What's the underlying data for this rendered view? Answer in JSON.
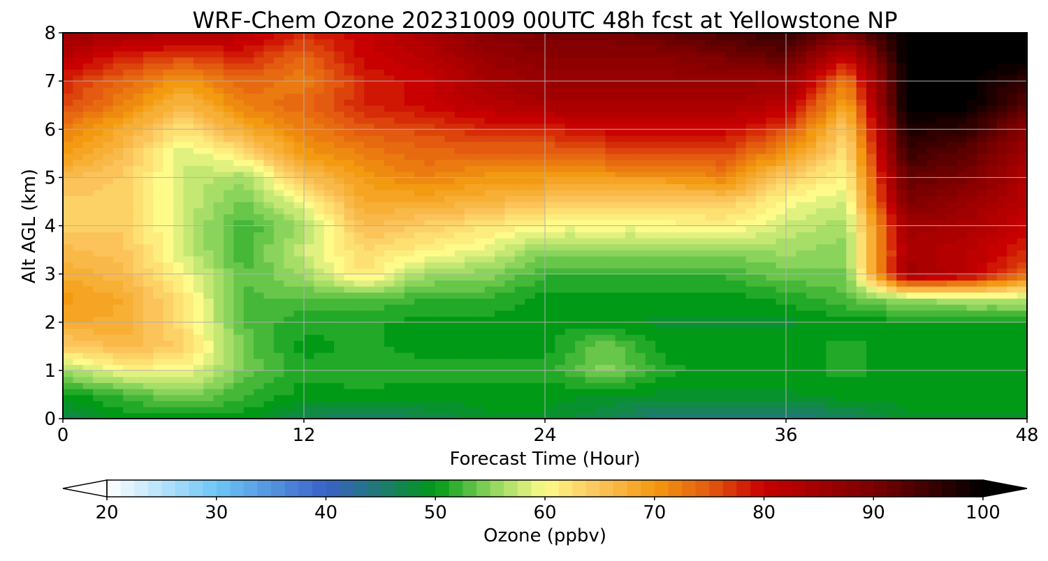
{
  "chart_data": {
    "type": "heatmap",
    "title": "WRF-Chem Ozone  20231009 00UTC 48h fcst at Yellowstone NP",
    "xlabel": "Forecast Time (Hour)",
    "ylabel": "Alt AGL (km)",
    "xlim": [
      0,
      48
    ],
    "ylim": [
      0,
      8
    ],
    "x_ticks": [
      0,
      12,
      24,
      36,
      48
    ],
    "y_ticks": [
      0,
      1,
      2,
      3,
      4,
      5,
      6,
      7,
      8
    ],
    "grid": true,
    "x": [
      0,
      3,
      6,
      9,
      12,
      15,
      18,
      21,
      24,
      27,
      30,
      33,
      36,
      39,
      42,
      45,
      48
    ],
    "y": [
      0,
      0.5,
      1,
      1.5,
      2,
      2.5,
      3,
      3.5,
      4,
      4.5,
      5,
      5.5,
      6,
      6.5,
      7,
      7.5,
      8
    ],
    "z": [
      [
        47,
        50,
        50,
        50,
        47,
        45,
        47,
        49,
        49,
        47,
        44,
        44,
        44,
        46,
        49,
        49,
        49
      ],
      [
        50,
        52,
        55,
        52,
        50,
        50,
        50,
        50,
        50,
        49,
        49,
        49,
        49,
        50,
        50,
        50,
        50
      ],
      [
        56,
        60,
        60,
        54,
        51,
        52,
        51,
        51,
        51,
        55,
        51,
        50,
        50,
        51,
        50,
        50,
        50
      ],
      [
        64,
        66,
        64,
        54,
        50,
        51,
        50,
        50,
        50,
        54,
        50,
        50,
        50,
        51,
        50,
        50,
        50
      ],
      [
        68,
        68,
        62,
        53,
        51,
        51,
        50,
        50,
        50,
        50,
        49,
        49,
        49,
        50,
        50,
        50,
        50
      ],
      [
        70,
        68,
        62,
        53,
        53,
        53,
        52,
        52,
        50,
        50,
        50,
        50,
        51,
        53,
        56,
        57,
        57
      ],
      [
        68,
        66,
        60,
        53,
        56,
        62,
        56,
        55,
        52,
        52,
        52,
        52,
        54,
        54,
        85,
        82,
        74
      ],
      [
        66,
        65,
        58,
        52,
        58,
        63,
        61,
        59,
        55,
        55,
        55,
        55,
        56,
        55,
        84,
        82,
        78
      ],
      [
        64,
        64,
        58,
        52,
        56,
        66,
        64,
        62,
        60,
        60,
        60,
        61,
        58,
        56,
        85,
        84,
        80
      ],
      [
        64,
        64,
        58,
        54,
        60,
        68,
        68,
        67,
        65,
        64,
        64,
        64,
        60,
        58,
        90,
        86,
        82
      ],
      [
        66,
        64,
        58,
        56,
        65,
        70,
        72,
        70,
        70,
        70,
        70,
        72,
        64,
        60,
        92,
        90,
        83
      ],
      [
        70,
        66,
        58,
        62,
        70,
        72,
        74,
        74,
        74,
        75,
        75,
        76,
        70,
        62,
        95,
        92,
        85
      ],
      [
        72,
        68,
        62,
        68,
        72,
        75,
        76,
        78,
        78,
        80,
        80,
        80,
        76,
        64,
        98,
        96,
        88
      ],
      [
        76,
        72,
        66,
        72,
        74,
        78,
        80,
        82,
        84,
        84,
        84,
        84,
        82,
        68,
        100,
        100,
        92
      ],
      [
        78,
        74,
        70,
        74,
        72,
        78,
        80,
        84,
        86,
        86,
        86,
        86,
        86,
        72,
        100,
        100,
        96
      ],
      [
        82,
        78,
        76,
        78,
        74,
        80,
        82,
        86,
        88,
        88,
        88,
        90,
        92,
        80,
        100,
        100,
        100
      ],
      [
        86,
        84,
        84,
        82,
        78,
        80,
        84,
        88,
        90,
        90,
        92,
        94,
        96,
        90,
        100,
        100,
        100
      ]
    ],
    "colorbar": {
      "label": "Ozone  (ppbv)",
      "min": 20,
      "max": 100,
      "ticks": [
        20,
        30,
        40,
        50,
        60,
        70,
        80,
        90,
        100
      ],
      "extend": "both",
      "stops": [
        {
          "v": 20,
          "c": "#ffffff"
        },
        {
          "v": 30,
          "c": "#6ec6f6"
        },
        {
          "v": 40,
          "c": "#3a62c8"
        },
        {
          "v": 45,
          "c": "#1f7a72"
        },
        {
          "v": 50,
          "c": "#009a16"
        },
        {
          "v": 55,
          "c": "#8ad45c"
        },
        {
          "v": 60,
          "c": "#fefb8a"
        },
        {
          "v": 65,
          "c": "#fbc35a"
        },
        {
          "v": 70,
          "c": "#f39a10"
        },
        {
          "v": 75,
          "c": "#e35a10"
        },
        {
          "v": 80,
          "c": "#c80000"
        },
        {
          "v": 90,
          "c": "#7a0000"
        },
        {
          "v": 100,
          "c": "#000000"
        }
      ]
    }
  }
}
